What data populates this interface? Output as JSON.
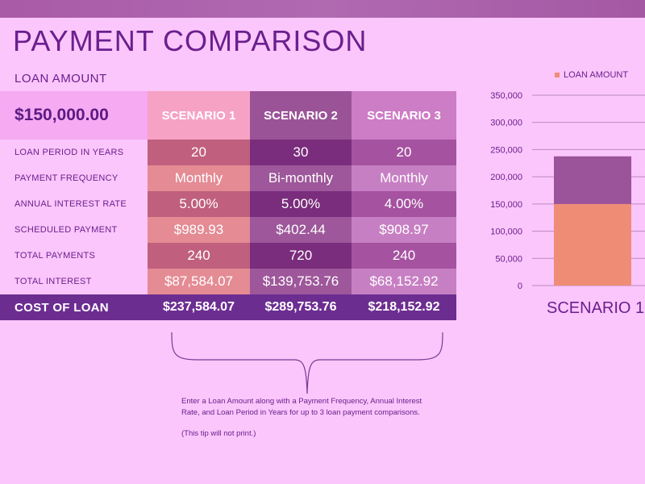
{
  "title": "PAYMENT COMPARISON",
  "loan_amount_label": "LOAN AMOUNT",
  "loan_amount": "$150,000.00",
  "scenarios": [
    "SCENARIO 1",
    "SCENARIO 2",
    "SCENARIO 3"
  ],
  "rows": [
    {
      "label": "LOAN PERIOD IN YEARS",
      "values": [
        "20",
        "30",
        "20"
      ]
    },
    {
      "label": "PAYMENT FREQUENCY",
      "values": [
        "Monthly",
        "Bi-monthly",
        "Monthly"
      ]
    },
    {
      "label": "ANNUAL INTEREST RATE",
      "values": [
        "5.00%",
        "5.00%",
        "4.00%"
      ]
    },
    {
      "label": "SCHEDULED PAYMENT",
      "values": [
        "$989.93",
        "$402.44",
        "$908.97"
      ]
    },
    {
      "label": "TOTAL PAYMENTS",
      "values": [
        "240",
        "720",
        "240"
      ]
    },
    {
      "label": "TOTAL INTEREST",
      "values": [
        "$87,584.07",
        "$139,753.76",
        "$68,152.92"
      ]
    }
  ],
  "total": {
    "label": "COST OF LOAN",
    "values": [
      "$237,584.07",
      "$289,753.76",
      "$218,152.92"
    ]
  },
  "tip": {
    "text": "Enter a Loan Amount along with a Payment Frequency, Annual Interest Rate, and Loan Period in Years for up to 3 loan payment comparisons.",
    "note": "(This tip will not print.)"
  },
  "colors": {
    "background": "#fbc6fb",
    "accent": "#6c2d91",
    "loan_bar": "#ef8c76",
    "interest_bar": "#9b5399"
  },
  "chart_data": {
    "type": "bar",
    "stacked": true,
    "categories": [
      "SCENARIO 1"
    ],
    "series": [
      {
        "name": "LOAN AMOUNT",
        "values": [
          150000
        ]
      },
      {
        "values": [
          87584.07
        ]
      }
    ],
    "ylim": [
      0,
      350000
    ],
    "yticks": [
      0,
      50000,
      100000,
      150000,
      200000,
      250000,
      300000,
      350000
    ],
    "ytick_labels": [
      "0",
      "50,000",
      "100,000",
      "150,000",
      "200,000",
      "250,000",
      "300,000",
      "350,000"
    ],
    "legend": "top",
    "grid": true
  }
}
